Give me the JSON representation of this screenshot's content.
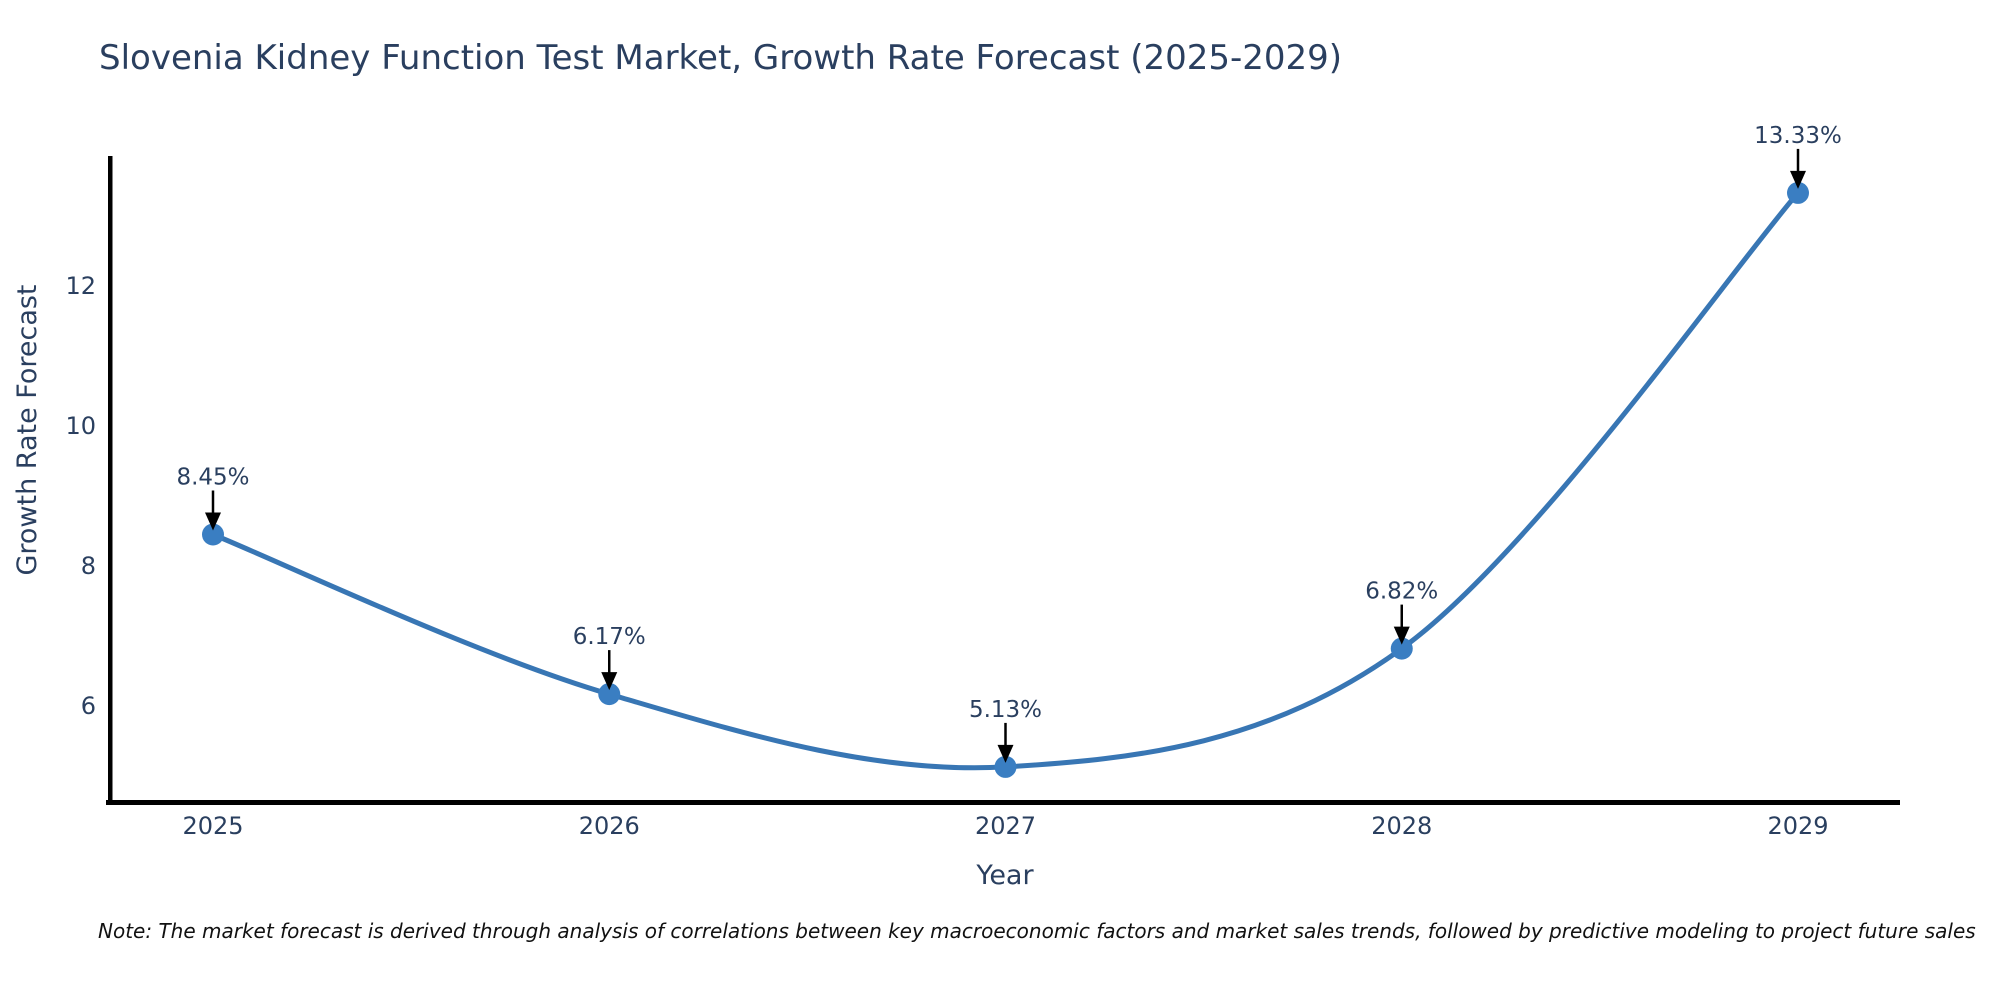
{
  "title": "Slovenia Kidney Function Test Market, Growth Rate Forecast (2025-2029)",
  "note": "Note: The market forecast is derived through analysis of correlations between key macroeconomic factors and market sales trends, followed by predictive modeling to project future sales",
  "chart_data": {
    "type": "line",
    "title": "Slovenia Kidney Function Test Market, Growth Rate Forecast (2025-2029)",
    "categories": [
      "2025",
      "2026",
      "2027",
      "2028",
      "2029"
    ],
    "series": [
      {
        "name": "Growth Rate Forecast",
        "values": [
          8.45,
          6.17,
          5.13,
          6.82,
          13.33
        ]
      }
    ],
    "point_labels": [
      "8.45%",
      "6.17%",
      "5.13%",
      "6.82%",
      "13.33%"
    ],
    "xlabel": "Year",
    "ylabel": "Growth Rate Forecast",
    "y_ticks": [
      6,
      8,
      10,
      12
    ],
    "ylim": [
      4.6,
      13.9
    ],
    "line_shape": "spline",
    "grid": false,
    "legend_position": "none",
    "markers": true,
    "annotations_arrows": true,
    "colors": {
      "line": "#3876b4",
      "marker": "#3a7ec2",
      "axis": "#000000",
      "text": "#2a3f5f",
      "annotation_text": "#2a3f5f",
      "arrow": "#000000",
      "background": "#ffffff"
    }
  }
}
